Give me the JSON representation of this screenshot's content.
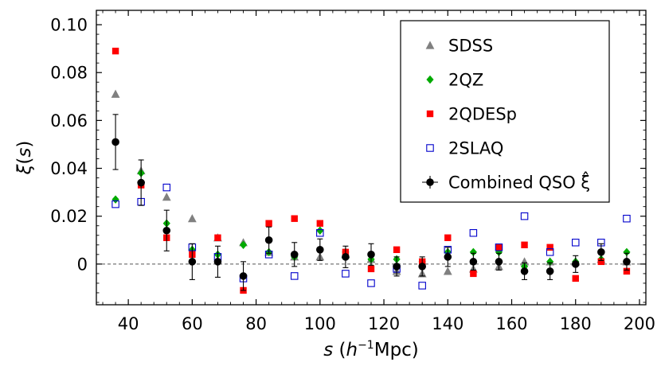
{
  "chart_data": {
    "type": "scatter",
    "xlabel": "s (h⁻¹Mpc)",
    "ylabel": "ξ(s)",
    "xlim": [
      30,
      202
    ],
    "ylim": [
      -0.017,
      0.106
    ],
    "x_ticks": [
      40,
      60,
      80,
      100,
      120,
      140,
      160,
      180,
      200
    ],
    "x_tick_labels": [
      "40",
      "60",
      "80",
      "100",
      "120",
      "140",
      "160",
      "180",
      "200"
    ],
    "y_ticks": [
      0,
      0.02,
      0.04,
      0.06,
      0.08,
      0.1
    ],
    "y_tick_labels": [
      "0",
      "0.02",
      "0.04",
      "0.06",
      "0.08",
      "0.10"
    ],
    "reference_line": {
      "y": 0,
      "style": "dashed"
    },
    "legend": {
      "position": "top-right"
    },
    "grid": false,
    "series": [
      {
        "name": "SDSS",
        "marker": "triangle",
        "color": "#808080",
        "x": [
          36,
          44,
          52,
          60,
          68,
          76,
          84,
          92,
          100,
          108,
          116,
          124,
          132,
          140,
          148,
          156,
          164,
          172,
          180,
          188,
          196
        ],
        "y": [
          0.071,
          0.039,
          0.028,
          0.019,
          0.011,
          0.009,
          0.005,
          0.003,
          0.003,
          0.004,
          0.002,
          -0.003,
          -0.004,
          -0.003,
          -0.002,
          -0.001,
          0.001,
          0.001,
          0.001,
          0.002,
          0.001
        ]
      },
      {
        "name": "2QZ",
        "marker": "diamond",
        "color": "#00aa00",
        "x": [
          36,
          44,
          52,
          60,
          68,
          76,
          84,
          92,
          100,
          108,
          116,
          124,
          132,
          140,
          148,
          156,
          164,
          172,
          180,
          188,
          196
        ],
        "y": [
          0.027,
          0.038,
          0.017,
          0.006,
          0.004,
          0.008,
          0.005,
          0.003,
          0.014,
          0.005,
          0.002,
          0.002,
          0.001,
          0.005,
          0.005,
          0.005,
          -0.001,
          0.001,
          0.001,
          0.002,
          0.005
        ]
      },
      {
        "name": "2QDESp",
        "marker": "filled-square",
        "color": "#ff0000",
        "x": [
          36,
          44,
          52,
          60,
          68,
          76,
          84,
          92,
          100,
          108,
          116,
          124,
          132,
          140,
          148,
          156,
          164,
          172,
          180,
          188,
          196
        ],
        "y": [
          0.089,
          0.033,
          0.011,
          0.004,
          0.011,
          -0.011,
          0.017,
          0.019,
          0.017,
          0.005,
          -0.002,
          0.006,
          0.001,
          0.011,
          -0.004,
          0.007,
          0.008,
          0.007,
          -0.006,
          0.001,
          -0.003
        ]
      },
      {
        "name": "2SLAQ",
        "marker": "open-square",
        "color": "#0000cc",
        "x": [
          36,
          44,
          52,
          60,
          68,
          76,
          84,
          92,
          100,
          108,
          116,
          124,
          132,
          140,
          148,
          156,
          164,
          172,
          180,
          188,
          196
        ],
        "y": [
          0.025,
          0.026,
          0.032,
          0.007,
          0.003,
          -0.006,
          0.004,
          -0.005,
          0.013,
          -0.004,
          -0.008,
          -0.002,
          -0.009,
          0.006,
          0.013,
          0.007,
          0.02,
          0.005,
          0.009,
          0.009,
          0.019
        ]
      },
      {
        "name": "Combined QSO ξ̂",
        "marker": "circle",
        "color": "#000000",
        "error_bars": true,
        "x": [
          36,
          44,
          52,
          60,
          68,
          76,
          84,
          92,
          100,
          108,
          116,
          124,
          132,
          140,
          148,
          156,
          164,
          172,
          180,
          188,
          196
        ],
        "y": [
          0.051,
          0.034,
          0.014,
          0.001,
          0.001,
          -0.005,
          0.01,
          0.004,
          0.006,
          0.003,
          0.004,
          -0.001,
          -0.001,
          0.003,
          0.001,
          0.001,
          -0.003,
          -0.003,
          0.0,
          0.005,
          0.001
        ],
        "yerr": [
          0.0115,
          0.0095,
          0.0085,
          0.0075,
          0.0065,
          0.006,
          0.0055,
          0.005,
          0.0045,
          0.0045,
          0.0045,
          0.004,
          0.004,
          0.004,
          0.0035,
          0.0035,
          0.0035,
          0.0035,
          0.0035,
          0.0035,
          0.0035
        ]
      }
    ]
  }
}
